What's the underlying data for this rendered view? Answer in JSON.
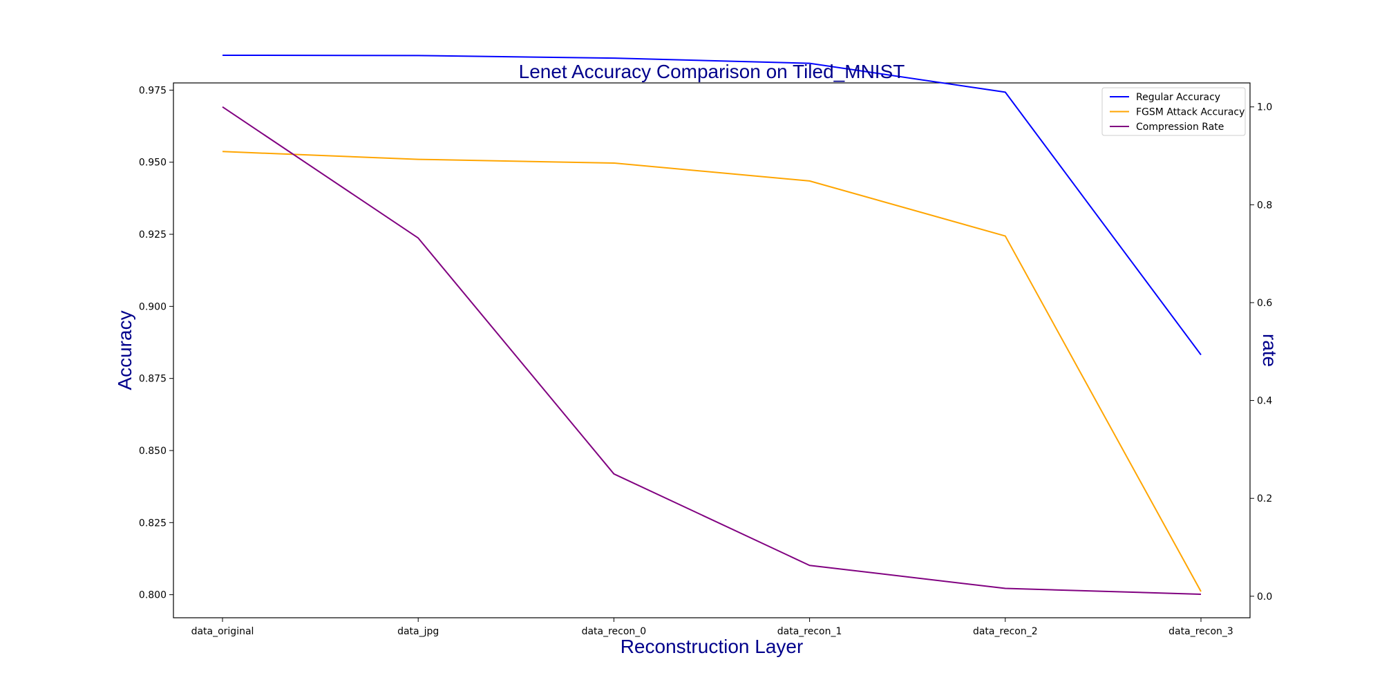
{
  "chart_data": {
    "type": "line",
    "title": "Lenet Accuracy Comparison on Tiled_MNIST",
    "xlabel": "Reconstruction Layer",
    "ylabel": "Accuracy",
    "ylabel_right": "rate",
    "categories": [
      "data_original",
      "data_jpg",
      "data_recon_0",
      "data_recon_1",
      "data_recon_2",
      "data_recon_3"
    ],
    "ylim": [
      0.792,
      0.9775
    ],
    "ylim_right": [
      -0.044,
      1.049
    ],
    "yticks": [
      0.8,
      0.825,
      0.85,
      0.875,
      0.9,
      0.925,
      0.95,
      0.975
    ],
    "yticks_labels": [
      "0.800",
      "0.825",
      "0.850",
      "0.875",
      "0.900",
      "0.925",
      "0.950",
      "0.975"
    ],
    "yticks_right": [
      0.0,
      0.2,
      0.4,
      0.6,
      0.8,
      1.0
    ],
    "yticks_right_labels": [
      "0.0",
      "0.2",
      "0.4",
      "0.6",
      "0.8",
      "1.0"
    ],
    "legend_position": "top-right",
    "grid": false,
    "series": [
      {
        "name": "Regular Accuracy",
        "axis": "left",
        "color": "#0000ff",
        "values": [
          0.9871,
          0.987,
          0.9861,
          0.9843,
          0.9743,
          0.8832
        ]
      },
      {
        "name": "FGSM Attack Accuracy",
        "axis": "left",
        "color": "#ffa500",
        "values": [
          0.9537,
          0.951,
          0.9497,
          0.9435,
          0.9244,
          0.8011
        ]
      },
      {
        "name": "Compression Rate",
        "axis": "right",
        "color": "#800080",
        "values": [
          1.0,
          0.732,
          0.25,
          0.063,
          0.016,
          0.004
        ]
      }
    ]
  }
}
